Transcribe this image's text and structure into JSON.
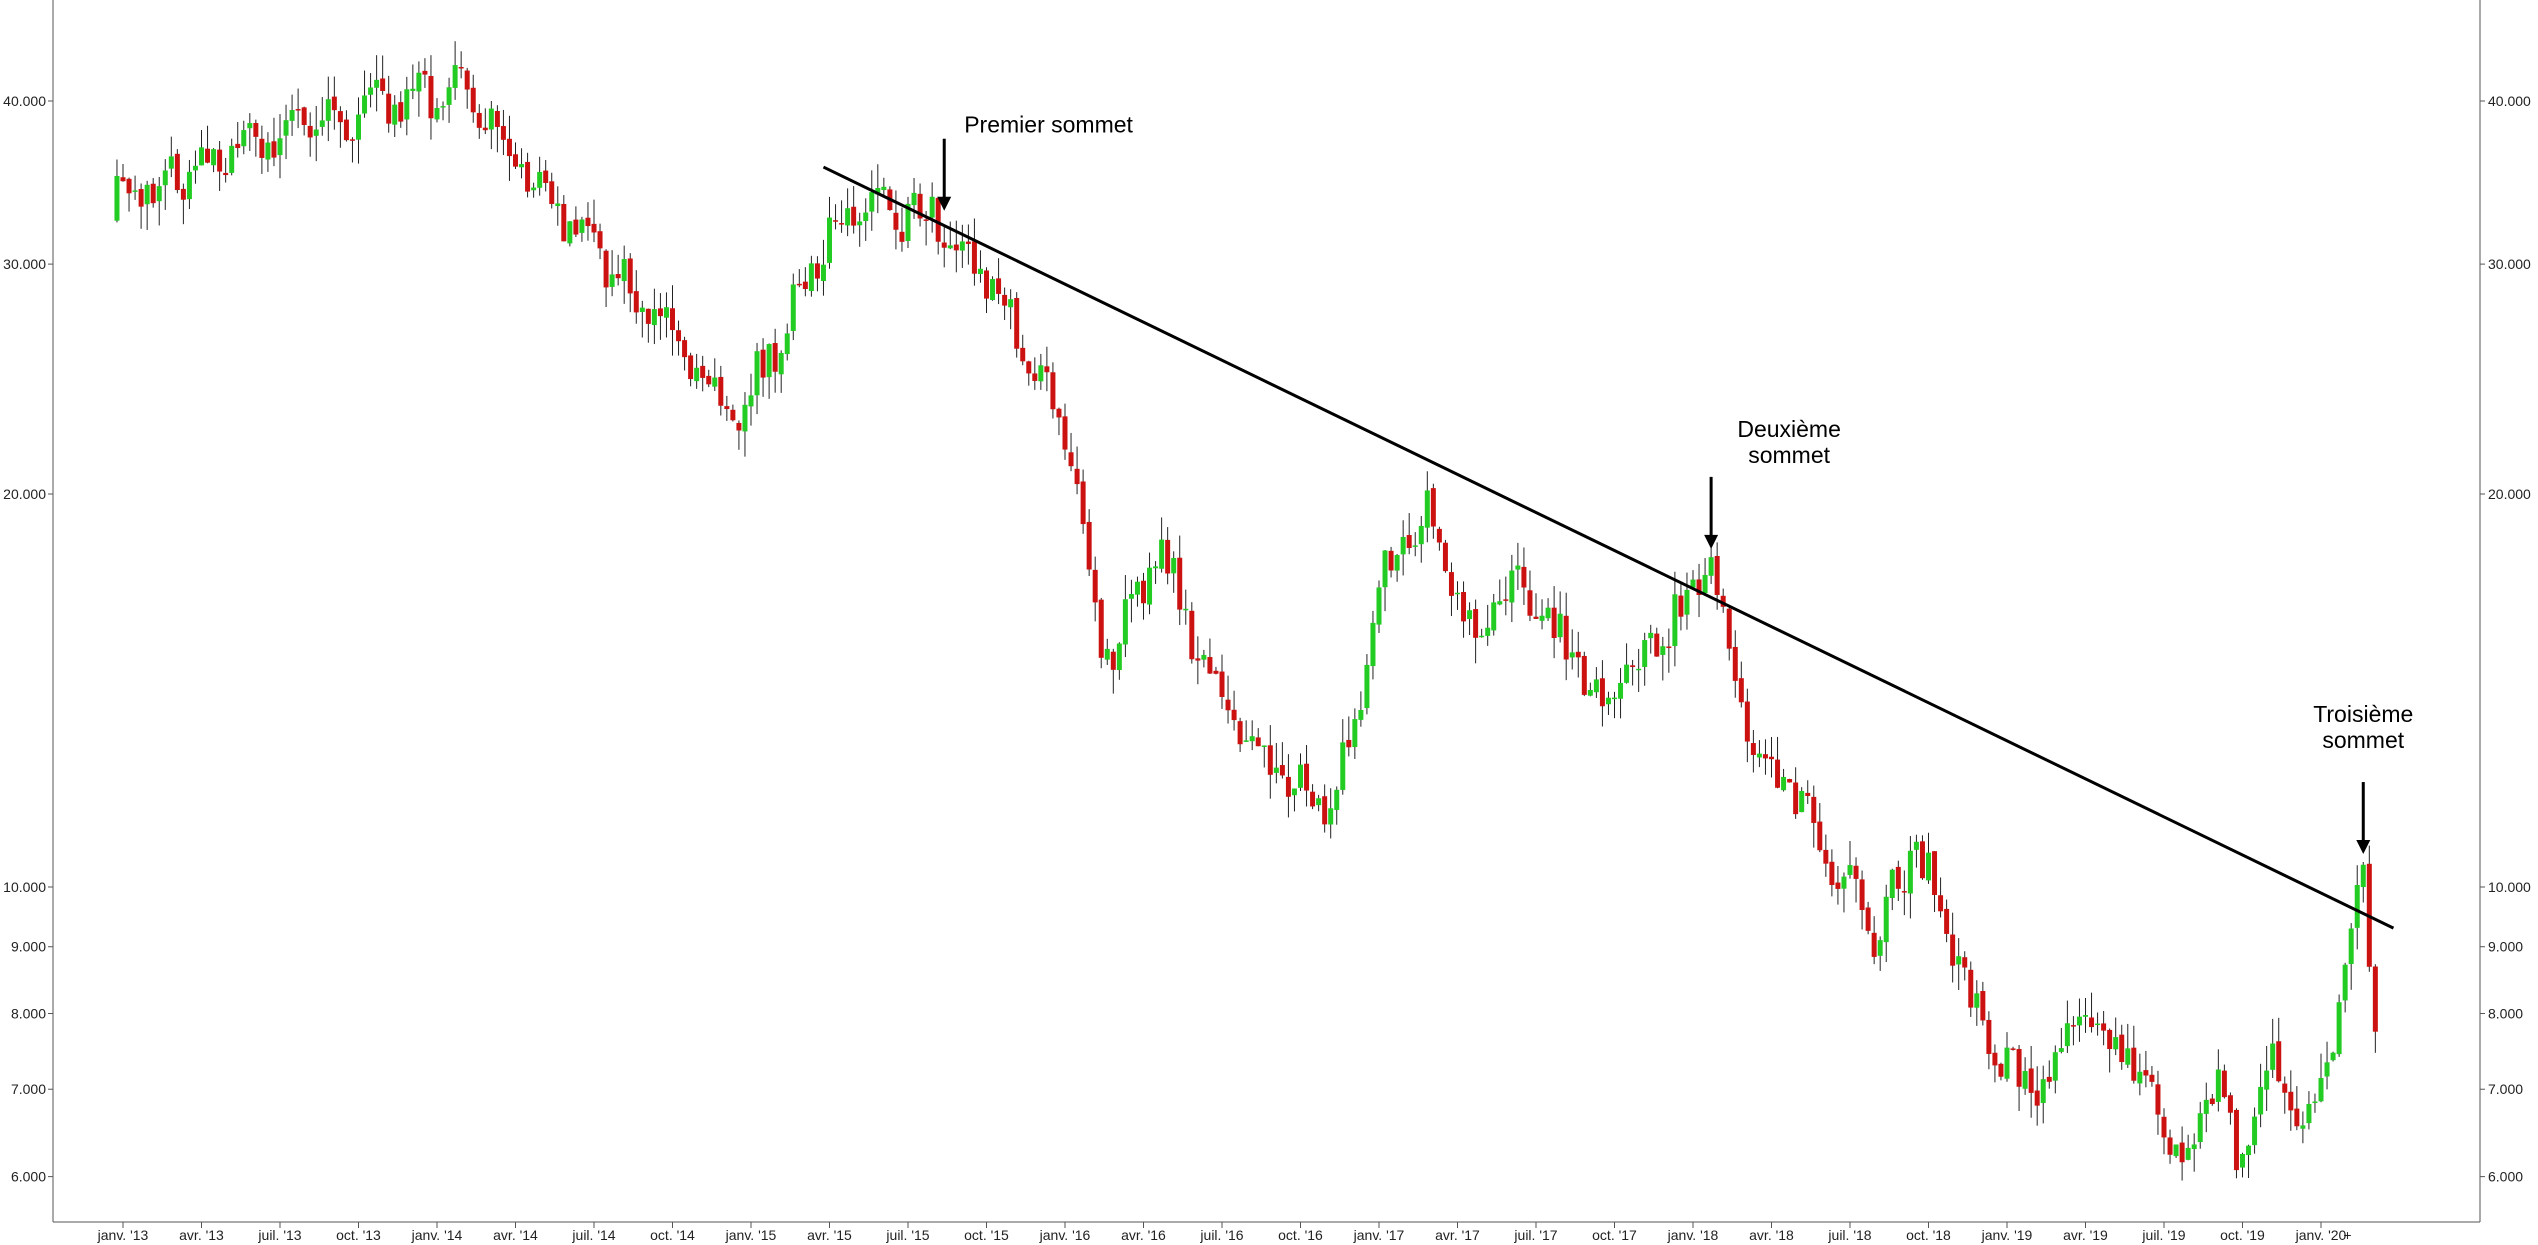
{
  "chart_data": {
    "type": "candlestick",
    "title": "",
    "xlabel": "",
    "ylabel": "",
    "y_scale": "log",
    "ylim": [
      5500,
      46000
    ],
    "grid": false,
    "legend": "none",
    "colors": {
      "up": "#22cc22",
      "down": "#cc1111",
      "wick": "#222222",
      "axis": "#555555",
      "trendline": "#000000"
    },
    "x_tick_labels": [
      "janv. '13",
      "avr. '13",
      "juil. '13",
      "oct. '13",
      "janv. '14",
      "avr. '14",
      "juil. '14",
      "oct. '14",
      "janv. '15",
      "avr. '15",
      "juil. '15",
      "oct. '15",
      "janv. '16",
      "avr. '16",
      "juil. '16",
      "oct. '16",
      "janv. '17",
      "avr. '17",
      "juil. '17",
      "oct. '17",
      "janv. '18",
      "avr. '18",
      "juil. '18",
      "oct. '18",
      "janv. '19",
      "avr. '19",
      "juil. '19",
      "oct. '19",
      "janv. '20"
    ],
    "x_extra_label": "+",
    "y_ticks": [
      {
        "value": 40000,
        "label": "40.000"
      },
      {
        "value": 30000,
        "label": "30.000"
      },
      {
        "value": 20000,
        "label": "20.000"
      },
      {
        "value": 10000,
        "label": "10.000"
      },
      {
        "value": 9000,
        "label": "9.000"
      },
      {
        "value": 8000,
        "label": "8.000"
      },
      {
        "value": 7000,
        "label": "7.000"
      },
      {
        "value": 6000,
        "label": "6.000"
      }
    ],
    "trendline": {
      "start": {
        "date": "2015-03-27",
        "value": 35600
      },
      "end": {
        "date": "2020-03-20",
        "value": 9300
      }
    },
    "annotations": [
      {
        "text": [
          "Premier sommet"
        ],
        "date": "2015-08-14",
        "value": 32500
      },
      {
        "text": [
          "Deuxième",
          "sommet"
        ],
        "date": "2018-01-19",
        "value": 17900
      },
      {
        "text": [
          "Troisième",
          "sommet"
        ],
        "date": "2020-02-14",
        "value": 10450
      }
    ],
    "key_points": [
      {
        "date": "2013-06-28",
        "value": 37500
      },
      {
        "date": "2014-01-24",
        "value": 41000
      },
      {
        "date": "2014-12-19",
        "value": 23000
      },
      {
        "date": "2015-04-24",
        "value": 33500
      },
      {
        "date": "2015-08-14",
        "value": 32500
      },
      {
        "date": "2015-10-23",
        "value": 28000
      },
      {
        "date": "2016-01-15",
        "value": 21000
      },
      {
        "date": "2016-02-12",
        "value": 14800
      },
      {
        "date": "2016-04-22",
        "value": 18000
      },
      {
        "date": "2016-06-24",
        "value": 14000
      },
      {
        "date": "2016-09-16",
        "value": 11900
      },
      {
        "date": "2016-11-11",
        "value": 11700
      },
      {
        "date": "2017-01-06",
        "value": 17500
      },
      {
        "date": "2017-02-24",
        "value": 19200
      },
      {
        "date": "2017-04-14",
        "value": 15500
      },
      {
        "date": "2017-06-09",
        "value": 17200
      },
      {
        "date": "2017-09-22",
        "value": 13800
      },
      {
        "date": "2017-12-15",
        "value": 16300
      },
      {
        "date": "2018-01-19",
        "value": 17900
      },
      {
        "date": "2018-03-02",
        "value": 13300
      },
      {
        "date": "2018-05-18",
        "value": 11200
      },
      {
        "date": "2018-07-27",
        "value": 9200
      },
      {
        "date": "2018-09-14",
        "value": 10800
      },
      {
        "date": "2018-11-16",
        "value": 8200
      },
      {
        "date": "2019-01-25",
        "value": 6800
      },
      {
        "date": "2019-03-29",
        "value": 8100
      },
      {
        "date": "2019-05-31",
        "value": 7200
      },
      {
        "date": "2019-07-19",
        "value": 6100
      },
      {
        "date": "2019-08-30",
        "value": 7200
      },
      {
        "date": "2019-09-20",
        "value": 6200
      },
      {
        "date": "2019-10-25",
        "value": 7300
      },
      {
        "date": "2019-12-20",
        "value": 6500
      },
      {
        "date": "2020-02-14",
        "value": 10300
      },
      {
        "date": "2020-02-28",
        "value": 8000
      }
    ]
  }
}
